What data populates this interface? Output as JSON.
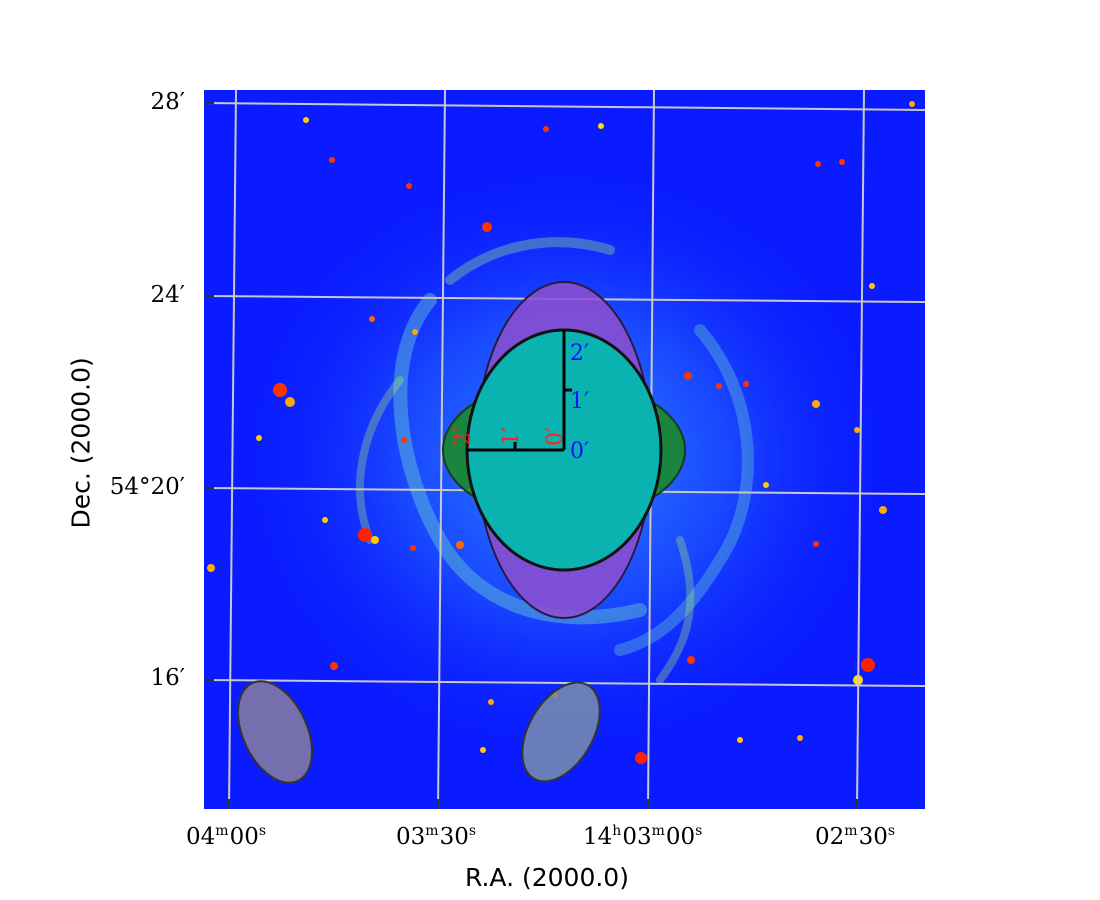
{
  "axes": {
    "xlabel": "R.A. (2000.0)",
    "ylabel": "Dec. (2000.0)"
  },
  "ra_ticks": [
    {
      "h": "",
      "m": "04",
      "s": "00",
      "hidden": ""
    },
    {
      "h": "",
      "m": "03",
      "s": "30",
      "hidden": ""
    },
    {
      "h": "14",
      "m": "03",
      "s": "00",
      "hidden": ""
    },
    {
      "h": "",
      "m": "02",
      "s": "30",
      "hidden": ""
    }
  ],
  "dec_ticks": [
    "28′",
    "24′",
    "54°20′",
    "16′"
  ],
  "overlay_labels": {
    "blue_scale": [
      "0′",
      "1′",
      "2′"
    ],
    "red_scale": [
      "0′",
      "1′",
      "2′"
    ]
  },
  "colors": {
    "background": "#0a1cff",
    "grid": "#c8c8c8",
    "teal_ellipse": "#0bb3b0",
    "violet_ellipse": "#8b4fd0",
    "green_ellipse": "#1a8a2a",
    "beam_ellipse": "#8a7ea0",
    "blue_label": "#1010ff",
    "red_label": "#ff2020"
  }
}
